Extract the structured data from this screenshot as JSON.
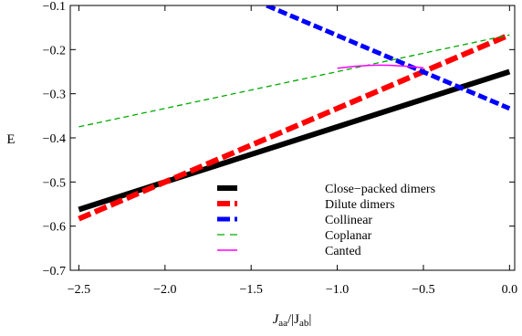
{
  "chart_data": {
    "type": "line",
    "title": "",
    "xlabel_main": "J",
    "xlabel_sub1": "aa",
    "xlabel_mid": "/|J",
    "xlabel_sub2": "ab",
    "xlabel_end": "|",
    "ylabel": "E",
    "xlim": [
      -2.55,
      0.03
    ],
    "ylim": [
      -0.7,
      -0.1
    ],
    "xticks": [
      -2.5,
      -2.0,
      -1.5,
      -1.0,
      -0.5,
      0.0
    ],
    "xtick_labels": [
      "−2.5",
      "−2.0",
      "−1.5",
      "−1.0",
      "−0.5",
      "0.0"
    ],
    "yticks": [
      -0.7,
      -0.6,
      -0.5,
      -0.4,
      -0.3,
      -0.2,
      -0.1
    ],
    "ytick_labels": [
      "−0.7",
      "−0.6",
      "−0.5",
      "−0.4",
      "−0.3",
      "−0.2",
      "−0.1"
    ],
    "grid": false,
    "legend_position": "bottom-center",
    "series": [
      {
        "name": "Close−packed dimers",
        "color": "#000000",
        "style": "solid",
        "x": [
          -2.5,
          0.0
        ],
        "y": [
          -0.5625,
          -0.25
        ]
      },
      {
        "name": "Dilute dimers",
        "color": "#ff0000",
        "style": "dashed",
        "x": [
          -2.5,
          0.0
        ],
        "y": [
          -0.5833,
          -0.1667
        ]
      },
      {
        "name": "Collinear",
        "color": "#0000ff",
        "style": "dashed",
        "x": [
          -1.41,
          0.0
        ],
        "y": [
          -0.1,
          -0.3333
        ]
      },
      {
        "name": "Coplanar",
        "color": "#00aa00",
        "style": "dashed",
        "x": [
          -2.5,
          0.0
        ],
        "y": [
          -0.375,
          -0.1667
        ]
      },
      {
        "name": "Canted",
        "color": "#ff00ff",
        "style": "solid",
        "x": [
          -1.0,
          -0.9,
          -0.8,
          -0.75,
          -0.7,
          -0.6,
          -0.5
        ],
        "y": [
          -0.2424,
          -0.2377,
          -0.2355,
          -0.2353,
          -0.2355,
          -0.2375,
          -0.2411
        ]
      }
    ]
  }
}
